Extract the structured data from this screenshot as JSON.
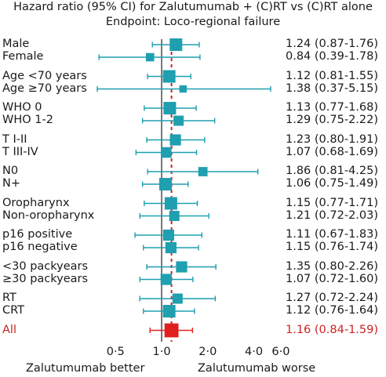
{
  "chart_data": {
    "type": "forest",
    "title": "Hazard ratio (95% CI) for Zalutumumab + (C)RT vs (C)RT alone",
    "subtitle": "Endpoint: Loco-regional failure",
    "x_scale": "log",
    "xlim": [
      0.38,
      6.6
    ],
    "x_ticks": [
      0.5,
      1.0,
      2.0,
      4.0,
      6.0
    ],
    "x_tick_labels": [
      "0·5",
      "1·0",
      "2·0",
      "4·0",
      "6·0"
    ],
    "reference_line": 1.0,
    "overall_line": 1.16,
    "left_label": "Zalutumumab better",
    "right_label": "Zalutumumab worse",
    "rows": [
      {
        "label": "Male",
        "hr": 1.24,
        "lo": 0.87,
        "hi": 1.76,
        "text": "1.24 (0.87-1.76)",
        "group": 0,
        "pos": 0,
        "weight": 1.0
      },
      {
        "label": "Female",
        "hr": 0.84,
        "lo": 0.39,
        "hi": 1.78,
        "text": "0.84 (0.39-1.78)",
        "group": 0,
        "pos": 1,
        "weight": 0.55
      },
      {
        "label": "Age <70 years",
        "hr": 1.12,
        "lo": 0.81,
        "hi": 1.55,
        "text": "1.12 (0.81-1.55)",
        "group": 1,
        "pos": 0,
        "weight": 1.0
      },
      {
        "label": "Age ≥70 years",
        "hr": 1.38,
        "lo": 0.37,
        "hi": 5.15,
        "text": "1.38 (0.37-5.15)",
        "group": 1,
        "pos": 1,
        "weight": 0.45
      },
      {
        "label": "WHO 0",
        "hr": 1.13,
        "lo": 0.77,
        "hi": 1.68,
        "text": "1.13 (0.77-1.68)",
        "group": 2,
        "pos": 0,
        "weight": 1.0
      },
      {
        "label": "WHO 1-2",
        "hr": 1.29,
        "lo": 0.75,
        "hi": 2.22,
        "text": "1.29 (0.75-2.22)",
        "group": 2,
        "pos": 1,
        "weight": 0.75
      },
      {
        "label": "T I-II",
        "hr": 1.23,
        "lo": 0.8,
        "hi": 1.91,
        "text": "1.23 (0.80-1.91)",
        "group": 3,
        "pos": 0,
        "weight": 0.85
      },
      {
        "label": "T III-IV",
        "hr": 1.07,
        "lo": 0.68,
        "hi": 1.69,
        "text": "1.07 (0.68-1.69)",
        "group": 3,
        "pos": 1,
        "weight": 0.8
      },
      {
        "label": "N0",
        "hr": 1.86,
        "lo": 0.81,
        "hi": 4.25,
        "text": "1.86 (0.81-4.25)",
        "group": 4,
        "pos": 0,
        "weight": 0.65
      },
      {
        "label": "N+",
        "hr": 1.06,
        "lo": 0.75,
        "hi": 1.49,
        "text": "1.06 (0.75-1.49)",
        "group": 4,
        "pos": 1,
        "weight": 1.0
      },
      {
        "label": "Oropharynx",
        "hr": 1.15,
        "lo": 0.77,
        "hi": 1.71,
        "text": "1.15 (0.77-1.71)",
        "group": 5,
        "pos": 0,
        "weight": 1.0
      },
      {
        "label": "Non-oropharynx",
        "hr": 1.21,
        "lo": 0.72,
        "hi": 2.03,
        "text": "1.21 (0.72-2.03)",
        "group": 5,
        "pos": 1,
        "weight": 0.75
      },
      {
        "label": "p16 positive",
        "hr": 1.11,
        "lo": 0.67,
        "hi": 1.83,
        "text": "1.11 (0.67-1.83)",
        "group": 6,
        "pos": 0,
        "weight": 0.85
      },
      {
        "label": "p16 negative",
        "hr": 1.15,
        "lo": 0.76,
        "hi": 1.74,
        "text": "1.15 (0.76-1.74)",
        "group": 6,
        "pos": 1,
        "weight": 0.85
      },
      {
        "label": "<30 packyears",
        "hr": 1.35,
        "lo": 0.8,
        "hi": 2.26,
        "text": "1.35 (0.80-2.26)",
        "group": 7,
        "pos": 0,
        "weight": 0.85
      },
      {
        "label": "≥30 packyears",
        "hr": 1.07,
        "lo": 0.72,
        "hi": 1.6,
        "text": "1.07 (0.72-1.60)",
        "group": 7,
        "pos": 1,
        "weight": 0.85
      },
      {
        "label": "RT",
        "hr": 1.27,
        "lo": 0.72,
        "hi": 2.24,
        "text": "1.27 (0.72-2.24)",
        "group": 8,
        "pos": 0,
        "weight": 0.75
      },
      {
        "label": "CRT",
        "hr": 1.12,
        "lo": 0.76,
        "hi": 1.64,
        "text": "1.12 (0.76-1.64)",
        "group": 8,
        "pos": 1,
        "weight": 1.0
      },
      {
        "label": "All",
        "hr": 1.16,
        "lo": 0.84,
        "hi": 1.59,
        "text": "1.16 (0.84-1.59)",
        "group": 9,
        "pos": 0,
        "weight": 1.15,
        "overall": true
      }
    ],
    "colors": {
      "subgroup": "#1f9fb0",
      "overall": "#e02020",
      "overall_text": "#cc2222",
      "reference_line": "#777777",
      "overall_line": "#c0282d",
      "text": "#1a1a1a"
    }
  }
}
